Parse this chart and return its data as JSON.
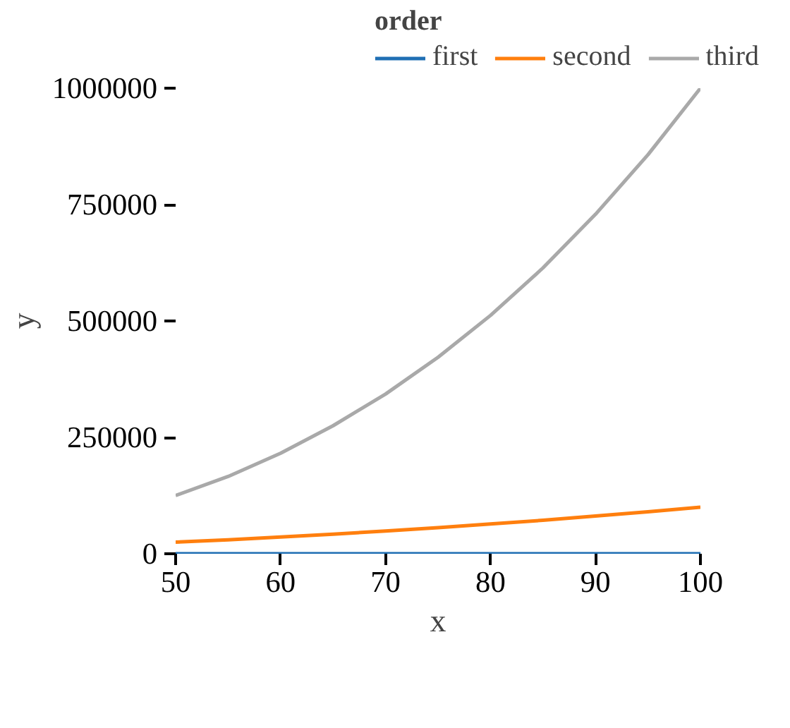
{
  "chart_data": {
    "type": "line",
    "xlabel": "x",
    "ylabel": "y",
    "legend_title": "order",
    "legend": "top",
    "grid": false,
    "x": [
      50,
      55,
      60,
      65,
      70,
      75,
      80,
      85,
      90,
      95,
      100
    ],
    "xlim": [
      50,
      100
    ],
    "xticks": [
      50,
      60,
      70,
      80,
      90,
      100
    ],
    "ylim": [
      0,
      1000000
    ],
    "yticks": [
      0,
      250000,
      500000,
      750000,
      1000000
    ],
    "series": [
      {
        "name": "first",
        "color": "#1f6fb4",
        "values": [
          50,
          55,
          60,
          65,
          70,
          75,
          80,
          85,
          90,
          95,
          100
        ]
      },
      {
        "name": "second",
        "color": "#ff7f0e",
        "values": [
          25000,
          30000,
          36000,
          42000,
          49000,
          56000,
          64000,
          72000,
          81000,
          90000,
          100000
        ]
      },
      {
        "name": "third",
        "color": "#a9a9a9",
        "values": [
          125000,
          166000,
          216000,
          275000,
          343000,
          422000,
          512000,
          614000,
          729000,
          857000,
          1000000
        ]
      }
    ]
  }
}
